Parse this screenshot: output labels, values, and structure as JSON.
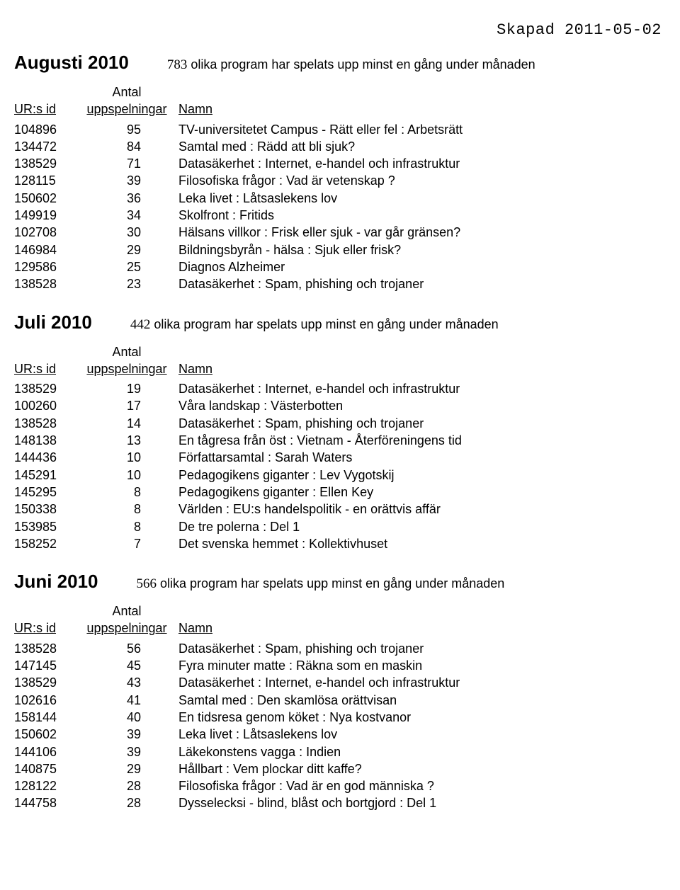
{
  "created_label": "Skapad 2011-05-02",
  "subtitle_suffix": " olika program har spelats upp minst en gång under månaden",
  "columns": {
    "id": "UR:s id",
    "count_l1": "Antal",
    "count_l2": "uppspelningar",
    "name": "Namn"
  },
  "sections": [
    {
      "title": "Augusti 2010",
      "count": "783",
      "rows": [
        {
          "id": "104896",
          "count": "95",
          "name": "TV-universitetet Campus - Rätt eller fel : Arbetsrätt"
        },
        {
          "id": "134472",
          "count": "84",
          "name": "Samtal med : Rädd att bli sjuk?"
        },
        {
          "id": "138529",
          "count": "71",
          "name": "Datasäkerhet : Internet, e-handel och infrastruktur"
        },
        {
          "id": "128115",
          "count": "39",
          "name": "Filosofiska frågor : Vad är vetenskap ?"
        },
        {
          "id": "150602",
          "count": "36",
          "name": "Leka livet : Låtsaslekens lov"
        },
        {
          "id": "149919",
          "count": "34",
          "name": "Skolfront : Fritids"
        },
        {
          "id": "102708",
          "count": "30",
          "name": "Hälsans villkor : Frisk eller sjuk - var går gränsen?"
        },
        {
          "id": "146984",
          "count": "29",
          "name": "Bildningsbyrån - hälsa : Sjuk eller frisk?"
        },
        {
          "id": "129586",
          "count": "25",
          "name": "Diagnos Alzheimer"
        },
        {
          "id": "138528",
          "count": "23",
          "name": "Datasäkerhet : Spam, phishing och trojaner"
        }
      ]
    },
    {
      "title": "Juli 2010",
      "count": "442",
      "rows": [
        {
          "id": "138529",
          "count": "19",
          "name": "Datasäkerhet : Internet, e-handel och infrastruktur"
        },
        {
          "id": "100260",
          "count": "17",
          "name": "Våra landskap : Västerbotten"
        },
        {
          "id": "138528",
          "count": "14",
          "name": "Datasäkerhet : Spam, phishing och trojaner"
        },
        {
          "id": "148138",
          "count": "13",
          "name": "En tågresa från öst : Vietnam - Återföreningens tid"
        },
        {
          "id": "144436",
          "count": "10",
          "name": "Författarsamtal : Sarah Waters"
        },
        {
          "id": "145291",
          "count": "10",
          "name": "Pedagogikens giganter : Lev Vygotskij"
        },
        {
          "id": "145295",
          "count": "8",
          "name": "Pedagogikens giganter : Ellen Key"
        },
        {
          "id": "150338",
          "count": "8",
          "name": "Världen : EU:s handelspolitik - en orättvis affär"
        },
        {
          "id": "153985",
          "count": "8",
          "name": "De tre polerna : Del 1"
        },
        {
          "id": "158252",
          "count": "7",
          "name": "Det svenska hemmet : Kollektivhuset"
        }
      ]
    },
    {
      "title": "Juni 2010",
      "count": "566",
      "rows": [
        {
          "id": "138528",
          "count": "56",
          "name": "Datasäkerhet : Spam, phishing och trojaner"
        },
        {
          "id": "147145",
          "count": "45",
          "name": "Fyra minuter matte : Räkna som en maskin"
        },
        {
          "id": "138529",
          "count": "43",
          "name": "Datasäkerhet : Internet, e-handel och infrastruktur"
        },
        {
          "id": "102616",
          "count": "41",
          "name": "Samtal med : Den skamlösa orättvisan"
        },
        {
          "id": "158144",
          "count": "40",
          "name": "En tidsresa genom köket : Nya kostvanor"
        },
        {
          "id": "150602",
          "count": "39",
          "name": "Leka livet : Låtsaslekens lov"
        },
        {
          "id": "144106",
          "count": "39",
          "name": "Läkekonstens vagga : Indien"
        },
        {
          "id": "140875",
          "count": "29",
          "name": "Hållbart : Vem plockar ditt kaffe?"
        },
        {
          "id": "128122",
          "count": "28",
          "name": "Filosofiska frågor : Vad är en god människa ?"
        },
        {
          "id": "144758",
          "count": "28",
          "name": "Dysselecksi - blind, blåst och bortgjord : Del 1"
        }
      ]
    }
  ]
}
